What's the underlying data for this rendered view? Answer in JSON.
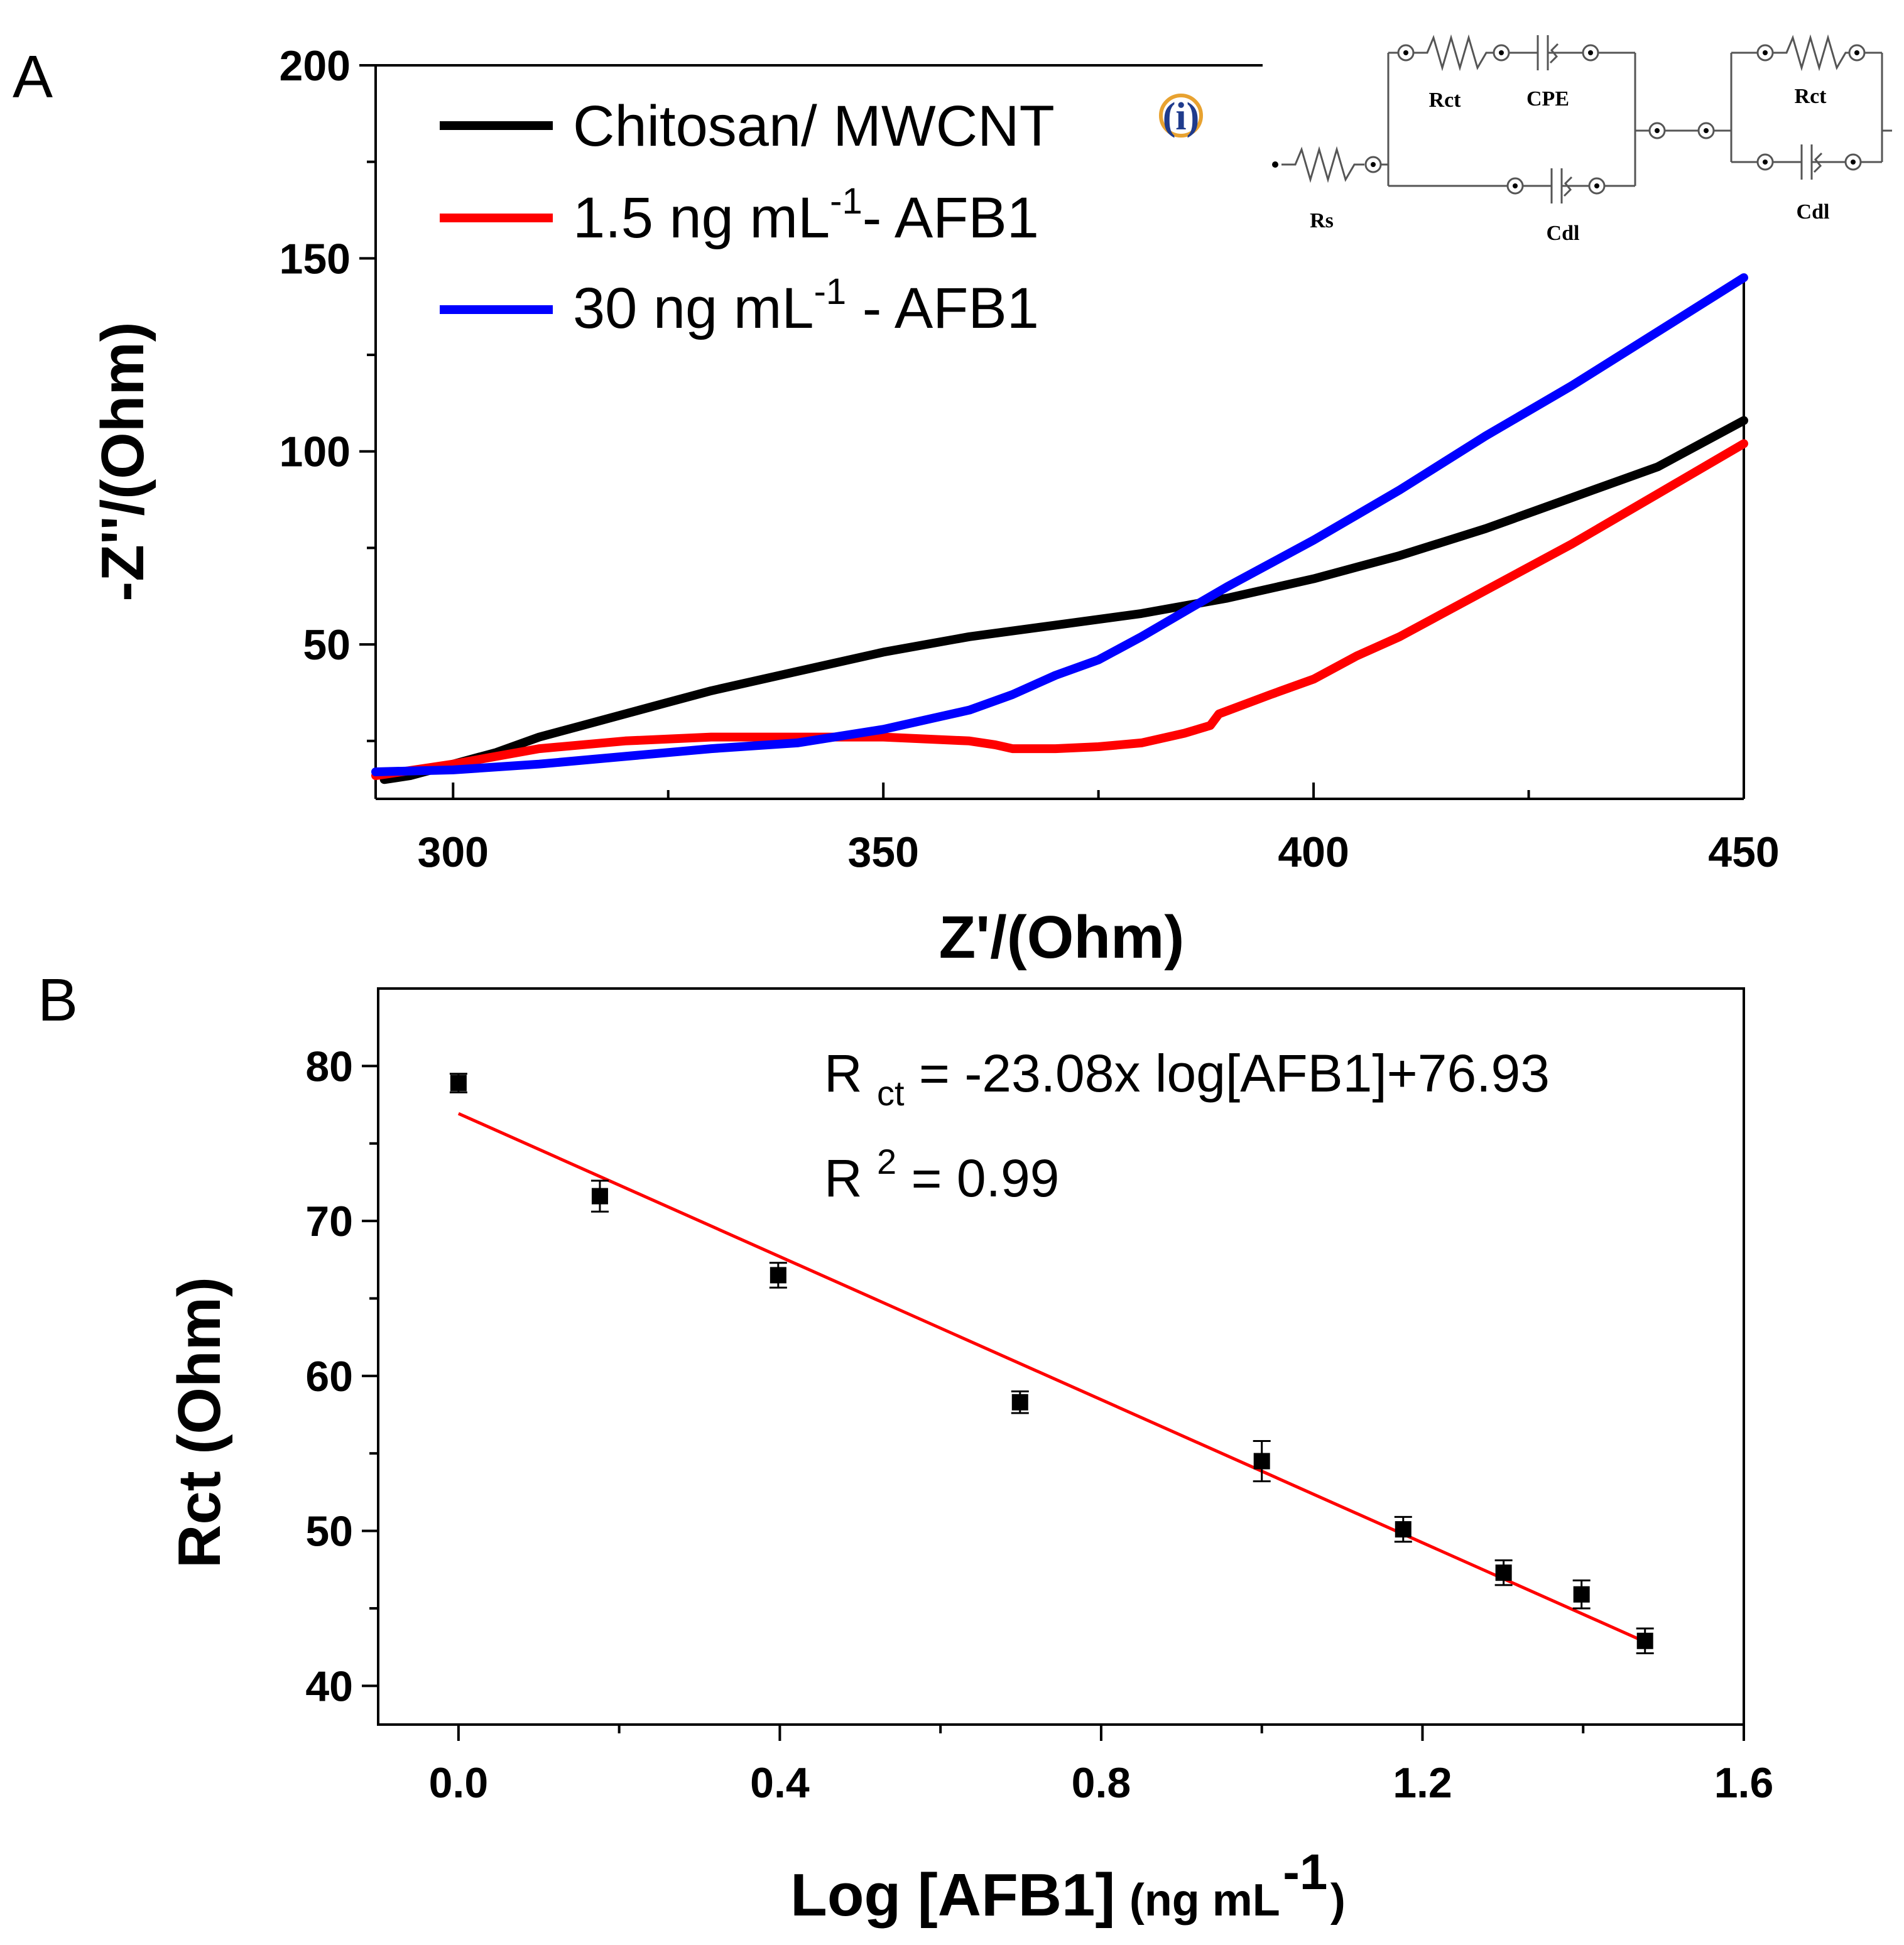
{
  "chart_data": [
    {
      "panel": "A",
      "type": "line",
      "title": "",
      "xlabel": "Z'/(Ohm)",
      "ylabel": "-Z''/(Ohm)",
      "xlim": [
        291,
        450
      ],
      "ylim": [
        10,
        200
      ],
      "xticks": [
        300,
        350,
        400,
        450
      ],
      "yticks": [
        50,
        100,
        150,
        200
      ],
      "legend_position": "top-left",
      "series": [
        {
          "name": "Chitosan/ MWCNT",
          "color": "#000000",
          "x": [
            292,
            295,
            300,
            305,
            310,
            315,
            320,
            325,
            330,
            340,
            350,
            360,
            370,
            380,
            390,
            400,
            410,
            420,
            430,
            440,
            450
          ],
          "y": [
            15,
            16,
            19,
            22,
            26,
            29,
            32,
            35,
            38,
            43,
            48,
            52,
            55,
            58,
            62,
            67,
            73,
            80,
            88,
            96,
            108
          ]
        },
        {
          "name": "1.5 ng mL-1- AFB1",
          "color": "#ff0000",
          "x": [
            291,
            300,
            310,
            320,
            330,
            340,
            350,
            360,
            363,
            365,
            370,
            375,
            380,
            385,
            388,
            389,
            395,
            400,
            405,
            410,
            420,
            430,
            440,
            450
          ],
          "y": [
            16,
            19,
            23,
            25,
            26,
            26,
            26,
            25,
            24,
            23,
            23,
            23.5,
            24.5,
            27,
            29,
            32,
            37,
            41,
            47,
            52,
            64,
            76,
            89,
            102
          ]
        },
        {
          "name": "30 ng mL-1 - AFB1",
          "color": "#0000ff",
          "x": [
            291,
            300,
            310,
            320,
            330,
            340,
            350,
            360,
            365,
            370,
            375,
            380,
            390,
            400,
            410,
            420,
            430,
            440,
            450
          ],
          "y": [
            17,
            17.5,
            19,
            21,
            23,
            24.5,
            28,
            33,
            37,
            42,
            46,
            52,
            65,
            77,
            90,
            104,
            117,
            131,
            145
          ]
        }
      ],
      "annotations": {
        "inset_marker": "(i)",
        "circuit_labels": [
          "Rct",
          "CPE",
          "Rs",
          "Cdl",
          "Rct",
          "Cdl"
        ]
      }
    },
    {
      "panel": "B",
      "type": "scatter",
      "title": "",
      "xlabel": "Log [AFB1]",
      "xlabel_unit": "(ng mL",
      "xlabel_sup": "-1",
      "xlabel_close": ")",
      "ylabel": "Rct (Ohm)",
      "xlim": [
        -0.1,
        1.6
      ],
      "ylim": [
        37.5,
        85
      ],
      "xticks": [
        0.0,
        0.4,
        0.8,
        1.2,
        1.6
      ],
      "xtick_labels": [
        "0.0",
        "0.4",
        "0.8",
        "1.2",
        "1.6"
      ],
      "yticks": [
        40,
        50,
        60,
        70,
        80
      ],
      "x": [
        0.0,
        0.176,
        0.398,
        0.699,
        1.0,
        1.176,
        1.301,
        1.398,
        1.477
      ],
      "y": [
        78.9,
        71.6,
        66.5,
        58.3,
        54.5,
        50.1,
        47.3,
        45.9,
        42.9
      ],
      "error": [
        0.6,
        1.0,
        0.8,
        0.7,
        1.3,
        0.8,
        0.8,
        0.9,
        0.8
      ],
      "fit": {
        "slope": -23.08,
        "intercept": 76.93,
        "x_range": [
          0.0,
          1.477
        ],
        "color": "#ff0000"
      },
      "equation": {
        "line1_prefix": "R",
        "line1_sub": "ct",
        "line1_rest": "= -23.08x log[AFB1]+76.93",
        "line2_prefix": "R",
        "line2_sup": "2",
        "line2_rest": "= 0.99"
      }
    }
  ]
}
